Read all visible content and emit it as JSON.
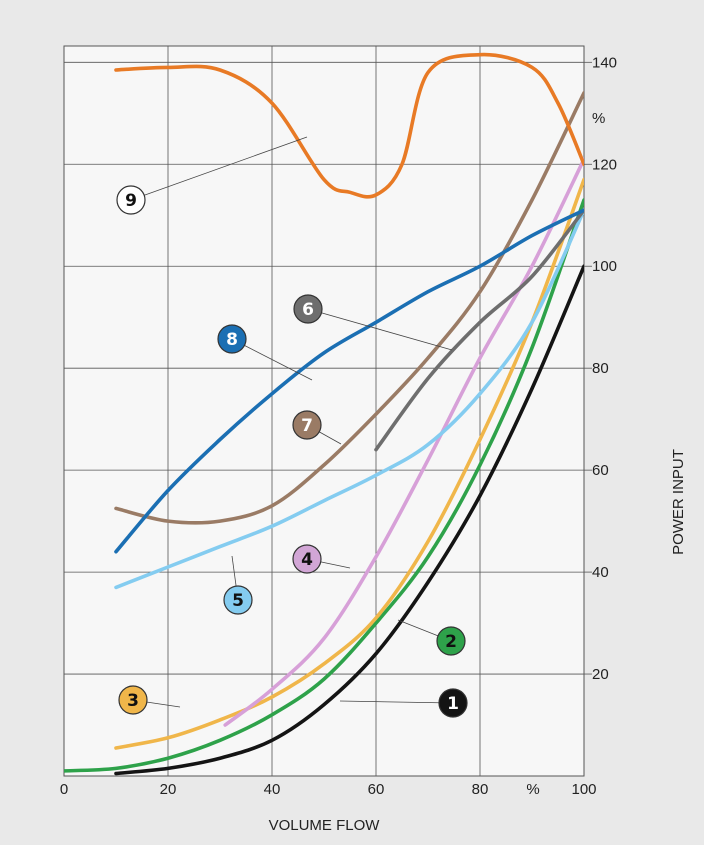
{
  "chart_data": {
    "type": "line",
    "xlabel": "VOLUME FLOW",
    "ylabel": "POWER INPUT",
    "x_unit": "%",
    "y_unit": "%",
    "xlim": [
      0,
      100
    ],
    "ylim": [
      0,
      140
    ],
    "x_ticks": [
      "0",
      "20",
      "40",
      "60",
      "80",
      "100"
    ],
    "y_ticks": [
      "20",
      "40",
      "60",
      "80",
      "100",
      "120",
      "140"
    ],
    "grid": true,
    "series": [
      {
        "label": "1",
        "color": "#141414",
        "fill": "#141414",
        "text_color": "#ffffff",
        "points": [
          [
            10,
            0.5
          ],
          [
            20,
            1.5
          ],
          [
            30,
            3.5
          ],
          [
            40,
            7
          ],
          [
            50,
            14
          ],
          [
            60,
            24
          ],
          [
            70,
            38
          ],
          [
            80,
            55
          ],
          [
            90,
            76
          ],
          [
            100,
            100
          ]
        ]
      },
      {
        "label": "2",
        "color": "#2ea24a",
        "fill": "#2ea24a",
        "text_color": "#111111",
        "points": [
          [
            0,
            1
          ],
          [
            10,
            1.5
          ],
          [
            20,
            3.5
          ],
          [
            30,
            7
          ],
          [
            40,
            12
          ],
          [
            50,
            19
          ],
          [
            60,
            30
          ],
          [
            70,
            43
          ],
          [
            80,
            61
          ],
          [
            90,
            84
          ],
          [
            100,
            113
          ]
        ]
      },
      {
        "label": "3",
        "color": "#f0b64a",
        "fill": "#f0b64a",
        "text_color": "#111111",
        "points": [
          [
            10,
            5.5
          ],
          [
            20,
            7.5
          ],
          [
            30,
            11
          ],
          [
            40,
            15.5
          ],
          [
            50,
            22
          ],
          [
            60,
            31
          ],
          [
            70,
            46
          ],
          [
            80,
            66
          ],
          [
            90,
            89
          ],
          [
            100,
            117
          ]
        ]
      },
      {
        "label": "4",
        "color": "#d7a0d8",
        "fill": "#d2a6d6",
        "text_color": "#111111",
        "points": [
          [
            31,
            10
          ],
          [
            40,
            17
          ],
          [
            50,
            27
          ],
          [
            60,
            43
          ],
          [
            70,
            62
          ],
          [
            80,
            82
          ],
          [
            90,
            100
          ],
          [
            100,
            121
          ]
        ]
      },
      {
        "label": "5",
        "color": "#84ccf0",
        "fill": "#84ccf0",
        "text_color": "#111111",
        "points": [
          [
            10,
            37
          ],
          [
            20,
            41
          ],
          [
            30,
            45
          ],
          [
            40,
            49
          ],
          [
            50,
            54
          ],
          [
            60,
            59
          ],
          [
            70,
            65
          ],
          [
            80,
            75
          ],
          [
            90,
            89
          ],
          [
            100,
            111
          ]
        ]
      },
      {
        "label": "6",
        "color": "#6e6e6e",
        "fill": "#6e6e6e",
        "text_color": "#ffffff",
        "points": [
          [
            60,
            64
          ],
          [
            70,
            78
          ],
          [
            80,
            89
          ],
          [
            90,
            98
          ],
          [
            100,
            111
          ]
        ]
      },
      {
        "label": "7",
        "color": "#9a7b65",
        "fill": "#9a7b65",
        "text_color": "#ffffff",
        "points": [
          [
            10,
            52.5
          ],
          [
            20,
            50
          ],
          [
            30,
            50
          ],
          [
            40,
            53
          ],
          [
            50,
            61
          ],
          [
            60,
            71
          ],
          [
            70,
            82
          ],
          [
            80,
            95
          ],
          [
            90,
            113
          ],
          [
            100,
            134
          ]
        ]
      },
      {
        "label": "8",
        "color": "#1b6fb3",
        "fill": "#1b6fb3",
        "text_color": "#ffffff",
        "points": [
          [
            10,
            44
          ],
          [
            20,
            56
          ],
          [
            30,
            66
          ],
          [
            40,
            75
          ],
          [
            50,
            83
          ],
          [
            60,
            89
          ],
          [
            70,
            95
          ],
          [
            80,
            100
          ],
          [
            90,
            106
          ],
          [
            100,
            111
          ]
        ]
      },
      {
        "label": "9",
        "color": "#e87a25",
        "fill": "#ffffff",
        "text_color": "#111111",
        "points": [
          [
            10,
            138.5
          ],
          [
            20,
            139
          ],
          [
            30,
            138.5
          ],
          [
            40,
            132
          ],
          [
            50,
            117
          ],
          [
            55,
            114.5
          ],
          [
            60,
            114
          ],
          [
            65,
            120
          ],
          [
            70,
            138
          ],
          [
            80,
            141.5
          ],
          [
            90,
            139
          ],
          [
            95,
            132
          ],
          [
            100,
            120
          ]
        ]
      }
    ]
  }
}
